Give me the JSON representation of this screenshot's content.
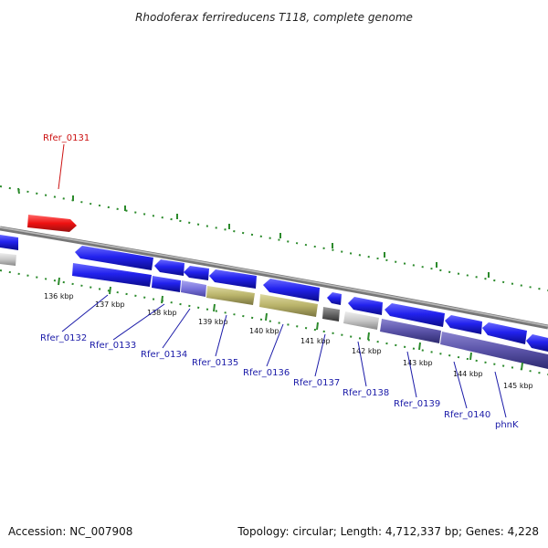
{
  "title": "Rhodoferax ferrireducens T118, complete genome",
  "footer": {
    "accession": "Accession: NC_007908",
    "summary": "Topology: circular; Length: 4,712,337 bp; Genes: 4,228"
  },
  "colors": {
    "forward_cds": "#2222ee",
    "reverse_cds": "#2222ee",
    "highlight": "#ee1111",
    "rna_olive": "#b9b36a",
    "pseudo_gray": "#c8c8c8",
    "dark_gray": "#666666",
    "purple": "#5a53a8",
    "tick_green": "#2b8a2b",
    "axis_gray": "#888888"
  },
  "scale_labels": [
    "136 kbp",
    "137 kbp",
    "138 kbp",
    "139 kbp",
    "140 kbp",
    "141 kbp",
    "142 kbp",
    "143 kbp",
    "144 kbp",
    "145 kbp"
  ],
  "gene_labels": [
    {
      "id": "rfer-0131",
      "text": "Rfer_0131"
    },
    {
      "id": "rfer-0132",
      "text": "Rfer_0132"
    },
    {
      "id": "rfer-0133",
      "text": "Rfer_0133"
    },
    {
      "id": "rfer-0134",
      "text": "Rfer_0134"
    },
    {
      "id": "rfer-0135",
      "text": "Rfer_0135"
    },
    {
      "id": "rfer-0136",
      "text": "Rfer_0136"
    },
    {
      "id": "rfer-0137",
      "text": "Rfer_0137"
    },
    {
      "id": "rfer-0138",
      "text": "Rfer_0138"
    },
    {
      "id": "rfer-0139",
      "text": "Rfer_0139"
    },
    {
      "id": "rfer-0140",
      "text": "Rfer_0140"
    },
    {
      "id": "phnk",
      "text": "phnK"
    }
  ]
}
